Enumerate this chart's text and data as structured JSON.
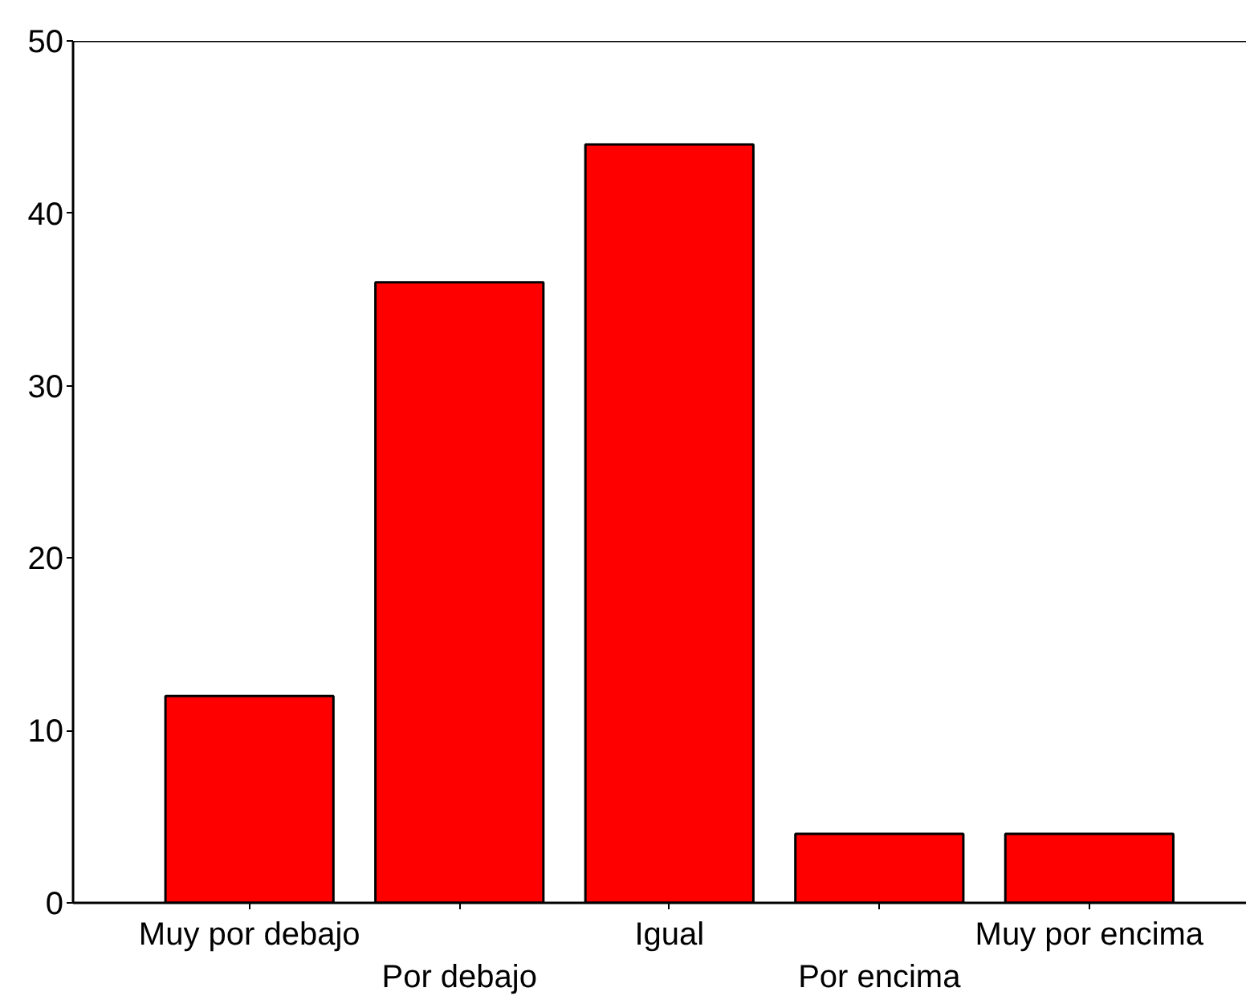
{
  "chart_data": {
    "type": "bar",
    "categories": [
      "Muy por debajo",
      "Por debajo",
      "Igual",
      "Por encima",
      "Muy por encima"
    ],
    "values": [
      12,
      36,
      44,
      4,
      4
    ],
    "color": "#ff0000",
    "ylim": [
      0,
      50
    ],
    "yticks": [
      0,
      10,
      20,
      30,
      40,
      50
    ],
    "grid": false
  }
}
